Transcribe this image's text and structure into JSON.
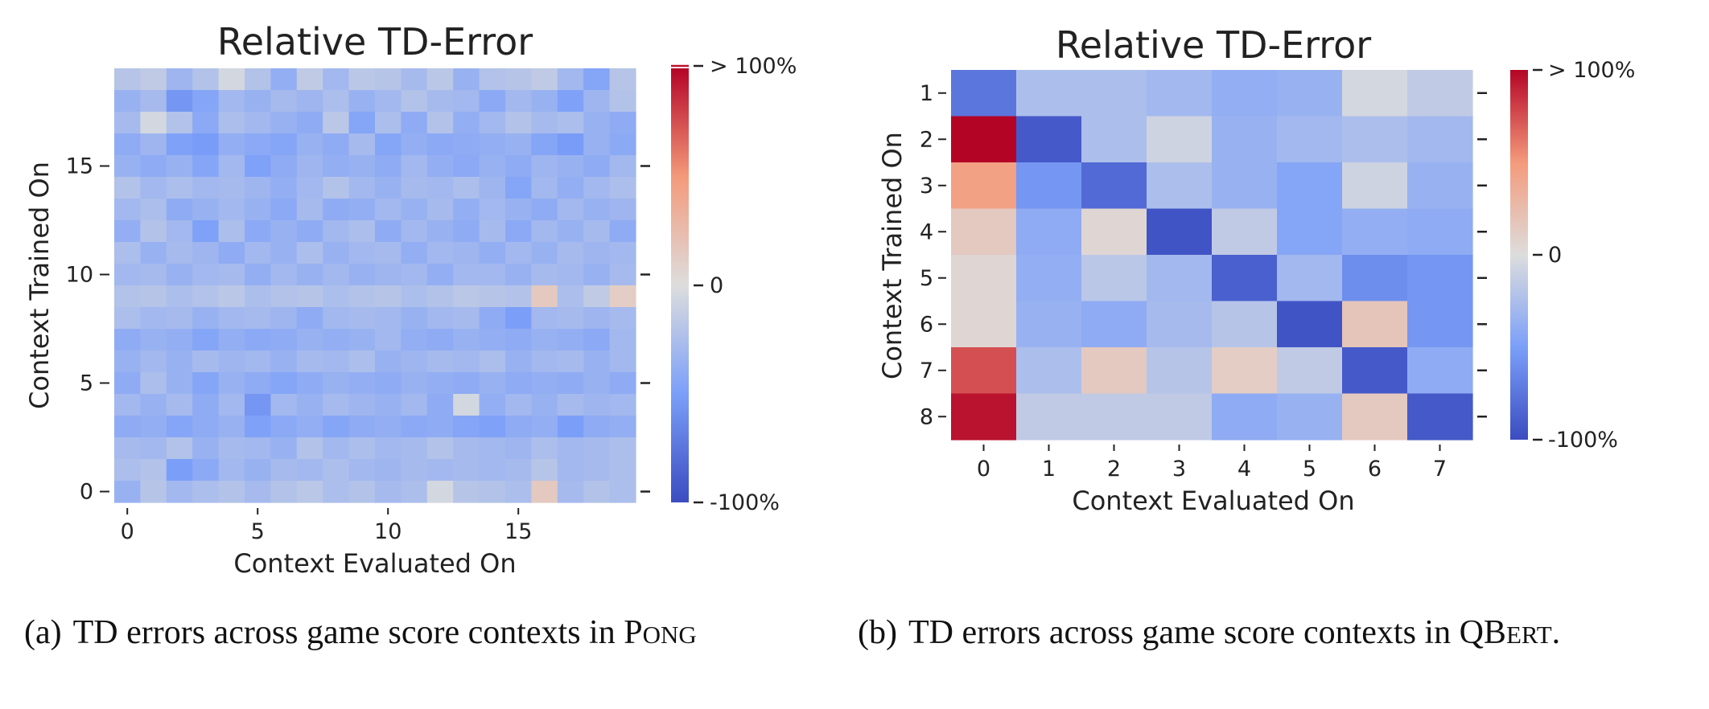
{
  "chart_data": [
    {
      "type": "heatmap",
      "title": "Relative TD-Error",
      "xlabel": "Context Evaluated On",
      "ylabel": "Context Trained On",
      "x_ticks": [
        "0",
        "5",
        "10",
        "15"
      ],
      "y_ticks": [
        "0",
        "5",
        "10",
        "15"
      ],
      "n_cols": 20,
      "n_rows": 20,
      "colorbar": {
        "top_label": "> 100%",
        "mid_label": "0",
        "bottom_label": "-100%",
        "range": [
          -1,
          1
        ],
        "colormap": "coolwarm"
      },
      "values": [
        [
          -0.2,
          -0.15,
          -0.32,
          -0.22,
          -0.05,
          -0.22,
          -0.38,
          -0.15,
          -0.3,
          -0.18,
          -0.2,
          -0.28,
          -0.18,
          -0.35,
          -0.22,
          -0.2,
          -0.15,
          -0.3,
          -0.45,
          -0.2
        ],
        [
          -0.35,
          -0.28,
          -0.55,
          -0.45,
          -0.3,
          -0.35,
          -0.28,
          -0.32,
          -0.25,
          -0.35,
          -0.3,
          -0.22,
          -0.28,
          -0.3,
          -0.42,
          -0.3,
          -0.35,
          -0.48,
          -0.32,
          -0.22
        ],
        [
          -0.28,
          -0.05,
          -0.22,
          -0.42,
          -0.25,
          -0.3,
          -0.35,
          -0.4,
          -0.18,
          -0.45,
          -0.25,
          -0.4,
          -0.22,
          -0.38,
          -0.3,
          -0.22,
          -0.28,
          -0.25,
          -0.35,
          -0.4
        ],
        [
          -0.4,
          -0.32,
          -0.48,
          -0.52,
          -0.38,
          -0.42,
          -0.45,
          -0.35,
          -0.4,
          -0.28,
          -0.45,
          -0.38,
          -0.42,
          -0.4,
          -0.38,
          -0.35,
          -0.45,
          -0.52,
          -0.35,
          -0.42
        ],
        [
          -0.35,
          -0.4,
          -0.35,
          -0.45,
          -0.3,
          -0.48,
          -0.4,
          -0.32,
          -0.38,
          -0.35,
          -0.4,
          -0.3,
          -0.38,
          -0.42,
          -0.35,
          -0.4,
          -0.32,
          -0.35,
          -0.4,
          -0.3
        ],
        [
          -0.22,
          -0.3,
          -0.25,
          -0.3,
          -0.28,
          -0.32,
          -0.38,
          -0.3,
          -0.22,
          -0.3,
          -0.35,
          -0.28,
          -0.3,
          -0.25,
          -0.32,
          -0.45,
          -0.3,
          -0.38,
          -0.3,
          -0.25
        ],
        [
          -0.3,
          -0.25,
          -0.4,
          -0.35,
          -0.3,
          -0.35,
          -0.42,
          -0.28,
          -0.4,
          -0.38,
          -0.3,
          -0.35,
          -0.28,
          -0.38,
          -0.3,
          -0.35,
          -0.4,
          -0.3,
          -0.35,
          -0.32
        ],
        [
          -0.38,
          -0.22,
          -0.3,
          -0.48,
          -0.25,
          -0.42,
          -0.35,
          -0.4,
          -0.3,
          -0.25,
          -0.4,
          -0.3,
          -0.35,
          -0.4,
          -0.28,
          -0.42,
          -0.3,
          -0.35,
          -0.28,
          -0.4
        ],
        [
          -0.25,
          -0.35,
          -0.28,
          -0.32,
          -0.4,
          -0.3,
          -0.35,
          -0.25,
          -0.35,
          -0.3,
          -0.28,
          -0.38,
          -0.3,
          -0.32,
          -0.38,
          -0.3,
          -0.35,
          -0.28,
          -0.32,
          -0.3
        ],
        [
          -0.3,
          -0.28,
          -0.35,
          -0.3,
          -0.28,
          -0.38,
          -0.3,
          -0.35,
          -0.3,
          -0.35,
          -0.32,
          -0.3,
          -0.38,
          -0.3,
          -0.3,
          -0.35,
          -0.28,
          -0.3,
          -0.35,
          -0.28
        ],
        [
          -0.22,
          -0.2,
          -0.25,
          -0.22,
          -0.18,
          -0.25,
          -0.22,
          -0.2,
          -0.25,
          -0.22,
          -0.2,
          -0.25,
          -0.22,
          -0.18,
          -0.2,
          -0.22,
          0.15,
          -0.25,
          -0.15,
          0.12
        ],
        [
          -0.25,
          -0.3,
          -0.28,
          -0.35,
          -0.3,
          -0.28,
          -0.32,
          -0.4,
          -0.3,
          -0.28,
          -0.3,
          -0.35,
          -0.3,
          -0.28,
          -0.4,
          -0.5,
          -0.3,
          -0.28,
          -0.32,
          -0.28
        ],
        [
          -0.4,
          -0.35,
          -0.38,
          -0.45,
          -0.38,
          -0.42,
          -0.4,
          -0.35,
          -0.38,
          -0.35,
          -0.3,
          -0.38,
          -0.4,
          -0.35,
          -0.38,
          -0.4,
          -0.35,
          -0.38,
          -0.42,
          -0.3
        ],
        [
          -0.35,
          -0.3,
          -0.35,
          -0.28,
          -0.32,
          -0.3,
          -0.35,
          -0.28,
          -0.3,
          -0.25,
          -0.35,
          -0.32,
          -0.28,
          -0.3,
          -0.25,
          -0.35,
          -0.3,
          -0.28,
          -0.35,
          -0.3
        ],
        [
          -0.4,
          -0.25,
          -0.35,
          -0.45,
          -0.35,
          -0.4,
          -0.45,
          -0.4,
          -0.35,
          -0.38,
          -0.4,
          -0.35,
          -0.38,
          -0.4,
          -0.35,
          -0.4,
          -0.38,
          -0.4,
          -0.35,
          -0.4
        ],
        [
          -0.3,
          -0.35,
          -0.28,
          -0.4,
          -0.3,
          -0.55,
          -0.3,
          -0.35,
          -0.28,
          -0.32,
          -0.35,
          -0.3,
          -0.4,
          -0.05,
          -0.38,
          -0.3,
          -0.35,
          -0.28,
          -0.32,
          -0.3
        ],
        [
          -0.4,
          -0.38,
          -0.45,
          -0.4,
          -0.35,
          -0.48,
          -0.42,
          -0.38,
          -0.45,
          -0.4,
          -0.38,
          -0.42,
          -0.4,
          -0.45,
          -0.48,
          -0.4,
          -0.38,
          -0.5,
          -0.4,
          -0.38
        ],
        [
          -0.28,
          -0.3,
          -0.22,
          -0.35,
          -0.28,
          -0.3,
          -0.35,
          -0.22,
          -0.3,
          -0.25,
          -0.3,
          -0.28,
          -0.22,
          -0.28,
          -0.3,
          -0.32,
          -0.25,
          -0.3,
          -0.28,
          -0.25
        ],
        [
          -0.25,
          -0.22,
          -0.5,
          -0.42,
          -0.3,
          -0.35,
          -0.28,
          -0.3,
          -0.25,
          -0.3,
          -0.32,
          -0.28,
          -0.3,
          -0.28,
          -0.3,
          -0.28,
          -0.2,
          -0.3,
          -0.28,
          -0.25
        ],
        [
          -0.35,
          -0.2,
          -0.3,
          -0.25,
          -0.22,
          -0.28,
          -0.22,
          -0.18,
          -0.25,
          -0.22,
          -0.28,
          -0.25,
          -0.05,
          -0.2,
          -0.22,
          -0.25,
          0.15,
          -0.28,
          -0.22,
          -0.25
        ]
      ]
    },
    {
      "type": "heatmap",
      "title": "Relative TD-Error",
      "xlabel": "Context Evaluated On",
      "ylabel": "Context Trained On",
      "x_ticks": [
        "0",
        "1",
        "2",
        "3",
        "4",
        "5",
        "6",
        "7"
      ],
      "y_ticks": [
        "1",
        "2",
        "3",
        "4",
        "5",
        "6",
        "7",
        "8"
      ],
      "colorbar": {
        "top_label": "> 100%",
        "mid_label": "0",
        "bottom_label": "-100%",
        "range": [
          -1,
          1
        ],
        "colormap": "coolwarm"
      },
      "values": [
        [
          -0.75,
          -0.25,
          -0.25,
          -0.3,
          -0.38,
          -0.35,
          -0.05,
          -0.15
        ],
        [
          1.0,
          -0.92,
          -0.25,
          -0.08,
          -0.35,
          -0.3,
          -0.25,
          -0.3
        ],
        [
          0.45,
          -0.55,
          -0.82,
          -0.25,
          -0.35,
          -0.45,
          -0.08,
          -0.35
        ],
        [
          0.15,
          -0.4,
          0.05,
          -0.95,
          -0.15,
          -0.45,
          -0.38,
          -0.4
        ],
        [
          0.05,
          -0.38,
          -0.18,
          -0.3,
          -0.88,
          -0.3,
          -0.6,
          -0.55
        ],
        [
          0.05,
          -0.35,
          -0.4,
          -0.28,
          -0.2,
          -0.95,
          0.18,
          -0.55
        ],
        [
          0.75,
          -0.25,
          0.15,
          -0.2,
          0.12,
          -0.15,
          -0.92,
          -0.4
        ],
        [
          0.95,
          -0.15,
          -0.15,
          -0.15,
          -0.4,
          -0.35,
          0.15,
          -0.92
        ]
      ]
    }
  ],
  "captions": [
    {
      "label": "(a)",
      "text": "TD errors across game score contexts in ",
      "game_first": "P",
      "game_rest": "ONG",
      "end": ""
    },
    {
      "label": "(b)",
      "text": "TD errors across game score contexts in ",
      "game_first": "QB",
      "game_rest": "ERT",
      "end": "."
    }
  ]
}
